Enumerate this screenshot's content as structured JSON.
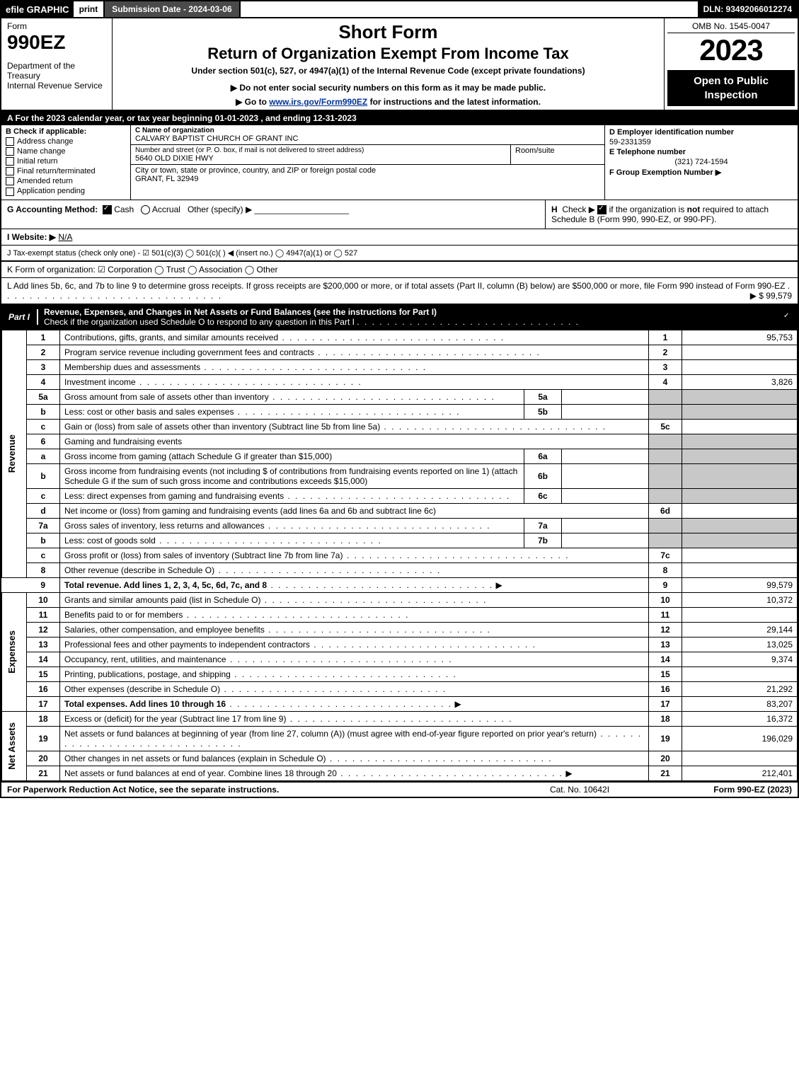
{
  "topbar": {
    "efile": "efile GRAPHIC",
    "print": "print",
    "subdate_label": "Submission Date - 2024-03-06",
    "dln": "DLN: 93492066012274"
  },
  "header": {
    "form_small": "Form",
    "form_num": "990EZ",
    "dept": "Department of the Treasury\nInternal Revenue Service",
    "shortform": "Short Form",
    "rettitle": "Return of Organization Exempt From Income Tax",
    "undersec": "Under section 501(c), 527, or 4947(a)(1) of the Internal Revenue Code (except private foundations)",
    "noenter": "▶ Do not enter social security numbers on this form as it may be made public.",
    "goto_pre": "▶ Go to ",
    "goto_link": "www.irs.gov/Form990EZ",
    "goto_post": " for instructions and the latest information.",
    "omb": "OMB No. 1545-0047",
    "year": "2023",
    "openbox": "Open to Public Inspection"
  },
  "rowA": "A  For the 2023 calendar year, or tax year beginning 01-01-2023 , and ending 12-31-2023",
  "blockB": {
    "title": "B  Check if applicable:",
    "items": [
      "Address change",
      "Name change",
      "Initial return",
      "Final return/terminated",
      "Amended return",
      "Application pending"
    ]
  },
  "blockC": {
    "name_label": "C Name of organization",
    "name": "CALVARY BAPTIST CHURCH OF GRANT INC",
    "street_label": "Number and street (or P. O. box, if mail is not delivered to street address)",
    "street": "5640 OLD DIXIE HWY",
    "room_label": "Room/suite",
    "city_label": "City or town, state or province, country, and ZIP or foreign postal code",
    "city": "GRANT, FL  32949"
  },
  "blockDEF": {
    "d_label": "D Employer identification number",
    "d_val": "59-2331359",
    "e_label": "E Telephone number",
    "e_val": "(321) 724-1594",
    "f_label": "F Group Exemption Number  ▶"
  },
  "rowG": {
    "label": "G Accounting Method:",
    "cash": "Cash",
    "accrual": "Accrual",
    "other": "Other (specify) ▶"
  },
  "rowH": "H  Check ▶ ☐ if the organization is not required to attach Schedule B (Form 990, 990-EZ, or 990-PF).",
  "rowI": {
    "label": "I Website: ▶",
    "val": "N/A"
  },
  "rowJ": "J Tax-exempt status (check only one) - ☑ 501(c)(3)  ◯ 501(c)(  ) ◀ (insert no.)  ◯ 4947(a)(1) or  ◯ 527",
  "rowK": "K Form of organization:  ☑ Corporation   ◯ Trust   ◯ Association   ◯ Other",
  "rowL": {
    "text": "L Add lines 5b, 6c, and 7b to line 9 to determine gross receipts. If gross receipts are $200,000 or more, or if total assets (Part II, column (B) below) are $500,000 or more, file Form 990 instead of Form 990-EZ",
    "amount": "▶ $ 99,579"
  },
  "part1": {
    "label": "Part I",
    "title": "Revenue, Expenses, and Changes in Net Assets or Fund Balances (see the instructions for Part I)",
    "subtitle": "Check if the organization used Schedule O to respond to any question in this Part I"
  },
  "sections": {
    "revenue": "Revenue",
    "expenses": "Expenses",
    "netassets": "Net Assets"
  },
  "lines": {
    "l1": {
      "n": "1",
      "t": "Contributions, gifts, grants, and similar amounts received",
      "ln": "1",
      "amt": "95,753"
    },
    "l2": {
      "n": "2",
      "t": "Program service revenue including government fees and contracts",
      "ln": "2",
      "amt": ""
    },
    "l3": {
      "n": "3",
      "t": "Membership dues and assessments",
      "ln": "3",
      "amt": ""
    },
    "l4": {
      "n": "4",
      "t": "Investment income",
      "ln": "4",
      "amt": "3,826"
    },
    "l5a": {
      "n": "5a",
      "t": "Gross amount from sale of assets other than inventory",
      "sub": "5a",
      "subv": ""
    },
    "l5b": {
      "n": "b",
      "t": "Less: cost or other basis and sales expenses",
      "sub": "5b",
      "subv": ""
    },
    "l5c": {
      "n": "c",
      "t": "Gain or (loss) from sale of assets other than inventory (Subtract line 5b from line 5a)",
      "ln": "5c",
      "amt": ""
    },
    "l6": {
      "n": "6",
      "t": "Gaming and fundraising events"
    },
    "l6a": {
      "n": "a",
      "t": "Gross income from gaming (attach Schedule G if greater than $15,000)",
      "sub": "6a",
      "subv": ""
    },
    "l6b": {
      "n": "b",
      "t": "Gross income from fundraising events (not including $                    of contributions from fundraising events reported on line 1) (attach Schedule G if the sum of such gross income and contributions exceeds $15,000)",
      "sub": "6b",
      "subv": ""
    },
    "l6c": {
      "n": "c",
      "t": "Less: direct expenses from gaming and fundraising events",
      "sub": "6c",
      "subv": ""
    },
    "l6d": {
      "n": "d",
      "t": "Net income or (loss) from gaming and fundraising events (add lines 6a and 6b and subtract line 6c)",
      "ln": "6d",
      "amt": ""
    },
    "l7a": {
      "n": "7a",
      "t": "Gross sales of inventory, less returns and allowances",
      "sub": "7a",
      "subv": ""
    },
    "l7b": {
      "n": "b",
      "t": "Less: cost of goods sold",
      "sub": "7b",
      "subv": ""
    },
    "l7c": {
      "n": "c",
      "t": "Gross profit or (loss) from sales of inventory (Subtract line 7b from line 7a)",
      "ln": "7c",
      "amt": ""
    },
    "l8": {
      "n": "8",
      "t": "Other revenue (describe in Schedule O)",
      "ln": "8",
      "amt": ""
    },
    "l9": {
      "n": "9",
      "t": "Total revenue. Add lines 1, 2, 3, 4, 5c, 6d, 7c, and 8",
      "ln": "9",
      "amt": "99,579",
      "bold": true,
      "arrow": true
    },
    "l10": {
      "n": "10",
      "t": "Grants and similar amounts paid (list in Schedule O)",
      "ln": "10",
      "amt": "10,372"
    },
    "l11": {
      "n": "11",
      "t": "Benefits paid to or for members",
      "ln": "11",
      "amt": ""
    },
    "l12": {
      "n": "12",
      "t": "Salaries, other compensation, and employee benefits",
      "ln": "12",
      "amt": "29,144"
    },
    "l13": {
      "n": "13",
      "t": "Professional fees and other payments to independent contractors",
      "ln": "13",
      "amt": "13,025"
    },
    "l14": {
      "n": "14",
      "t": "Occupancy, rent, utilities, and maintenance",
      "ln": "14",
      "amt": "9,374"
    },
    "l15": {
      "n": "15",
      "t": "Printing, publications, postage, and shipping",
      "ln": "15",
      "amt": ""
    },
    "l16": {
      "n": "16",
      "t": "Other expenses (describe in Schedule O)",
      "ln": "16",
      "amt": "21,292"
    },
    "l17": {
      "n": "17",
      "t": "Total expenses. Add lines 10 through 16",
      "ln": "17",
      "amt": "83,207",
      "bold": true,
      "arrow": true
    },
    "l18": {
      "n": "18",
      "t": "Excess or (deficit) for the year (Subtract line 17 from line 9)",
      "ln": "18",
      "amt": "16,372"
    },
    "l19": {
      "n": "19",
      "t": "Net assets or fund balances at beginning of year (from line 27, column (A)) (must agree with end-of-year figure reported on prior year's return)",
      "ln": "19",
      "amt": "196,029"
    },
    "l20": {
      "n": "20",
      "t": "Other changes in net assets or fund balances (explain in Schedule O)",
      "ln": "20",
      "amt": ""
    },
    "l21": {
      "n": "21",
      "t": "Net assets or fund balances at end of year. Combine lines 18 through 20",
      "ln": "21",
      "amt": "212,401",
      "arrow": true
    }
  },
  "footer": {
    "left": "For Paperwork Reduction Act Notice, see the separate instructions.",
    "mid": "Cat. No. 10642I",
    "right": "Form 990-EZ (2023)"
  },
  "colors": {
    "black": "#000000",
    "white": "#ffffff",
    "grey": "#c8c8c8",
    "darkgrey": "#4a4a4a",
    "link": "#003399"
  }
}
